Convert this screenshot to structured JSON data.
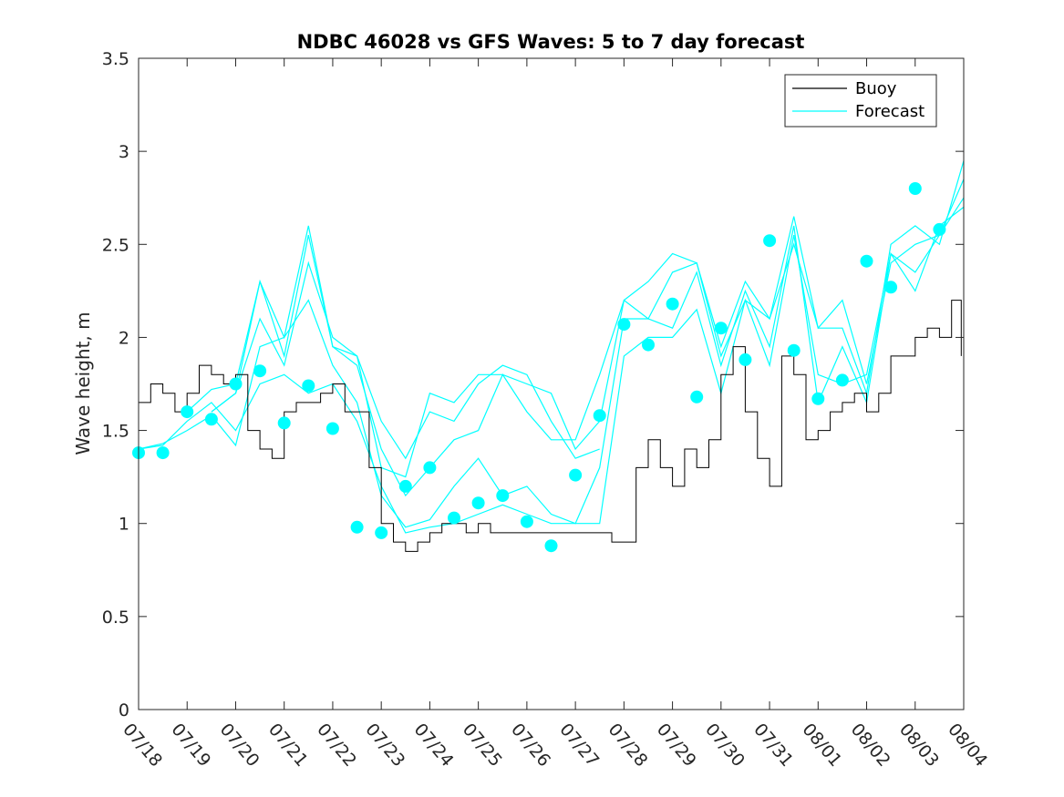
{
  "chart_data": {
    "type": "line",
    "title": "NDBC 46028 vs GFS Waves: 5 to 7 day forecast",
    "xlabel": "",
    "ylabel": "Wave height, m",
    "xlim": [
      "07/18",
      "08/04"
    ],
    "ylim": [
      0,
      3.5
    ],
    "x_tick_labels": [
      "07/18",
      "07/19",
      "07/20",
      "07/21",
      "07/22",
      "07/23",
      "07/24",
      "07/25",
      "07/26",
      "07/27",
      "07/28",
      "07/29",
      "07/30",
      "07/31",
      "08/01",
      "08/02",
      "08/03",
      "08/04"
    ],
    "y_ticks": [
      0,
      0.5,
      1,
      1.5,
      2,
      2.5,
      3,
      3.5
    ],
    "y_tick_labels": [
      "0",
      "0.5",
      "1",
      "1.5",
      "2",
      "2.5",
      "3",
      "3.5"
    ],
    "legend": {
      "position": "top-right",
      "entries": [
        "Buoy",
        "Forecast"
      ]
    },
    "colors": {
      "buoy": "#000000",
      "forecast": "#00ffff",
      "axis": "#262626"
    },
    "series": [
      {
        "name": "Buoy",
        "days": [
          0.0,
          0.25,
          0.5,
          0.75,
          1.0,
          1.25,
          1.5,
          1.75,
          2.0,
          2.25,
          2.5,
          2.75,
          3.0,
          3.25,
          3.5,
          3.75,
          4.0,
          4.25,
          4.5,
          4.75,
          5.0,
          5.25,
          5.5,
          5.75,
          6.0,
          6.25,
          6.5,
          6.75,
          7.0,
          7.25,
          7.5,
          7.75,
          8.0,
          8.25,
          8.5,
          8.75,
          9.0,
          9.25,
          9.5,
          9.75,
          10.0,
          10.25,
          10.5,
          10.75,
          11.0,
          11.25,
          11.5,
          11.75,
          12.0,
          12.25,
          12.5,
          12.75,
          13.0,
          13.25,
          13.5,
          13.75,
          14.0,
          14.25,
          14.5,
          14.75,
          15.0,
          15.25,
          15.5,
          15.75,
          16.0,
          16.25,
          16.5,
          16.75,
          16.95
        ],
        "values": [
          1.65,
          1.75,
          1.7,
          1.6,
          1.7,
          1.85,
          1.8,
          1.75,
          1.8,
          1.5,
          1.4,
          1.35,
          1.6,
          1.65,
          1.65,
          1.7,
          1.75,
          1.6,
          1.6,
          1.3,
          1.0,
          0.9,
          0.85,
          0.9,
          0.95,
          1.0,
          1.0,
          0.95,
          1.0,
          0.95,
          0.95,
          0.95,
          0.95,
          0.95,
          0.95,
          0.95,
          0.95,
          0.95,
          0.95,
          0.9,
          0.9,
          1.3,
          1.45,
          1.3,
          1.2,
          1.4,
          1.3,
          1.45,
          1.8,
          1.95,
          1.6,
          1.35,
          1.2,
          1.9,
          1.8,
          1.45,
          1.5,
          1.6,
          1.65,
          1.7,
          1.6,
          1.7,
          1.9,
          1.9,
          2.0,
          2.05,
          2.0,
          2.2,
          1.9
        ]
      },
      {
        "name": "Forecast",
        "segments": [
          {
            "days": [
              0.0,
              0.5,
              1.0,
              1.5,
              2.0,
              2.5,
              3.0,
              3.5,
              4.0,
              4.5,
              5.0,
              5.5,
              6.0,
              6.5,
              7.0,
              7.5,
              8.0,
              8.5,
              9.0,
              9.5,
              10.0,
              10.5,
              11.0,
              11.5,
              12.0,
              12.5,
              13.0,
              13.5,
              14.0,
              14.5,
              15.0,
              15.5,
              16.0,
              16.5,
              17.0
            ],
            "values": [
              1.4,
              1.42,
              1.55,
              1.65,
              1.5,
              1.75,
              1.8,
              1.7,
              1.75,
              1.55,
              1.2,
              0.95,
              0.98,
              1.0,
              1.05,
              1.1,
              1.05,
              1.0,
              1.0,
              1.0,
              1.9,
              2.0,
              2.0,
              2.15,
              1.7,
              2.2,
              1.85,
              2.55,
              1.8,
              1.75,
              1.8,
              2.45,
              2.35,
              2.55,
              2.85
            ]
          },
          {
            "days": [
              0.0,
              0.5,
              1.0,
              1.5,
              2.0,
              2.5,
              3.0,
              3.5,
              4.0,
              4.5,
              5.0,
              5.5,
              6.0,
              6.5,
              7.0,
              7.5,
              8.0,
              8.5,
              9.0,
              9.5,
              10.0,
              10.5,
              11.0,
              11.5,
              12.0,
              12.5,
              13.0,
              13.5,
              14.0,
              14.5,
              15.0,
              15.5,
              16.0,
              16.5,
              17.0
            ],
            "values": [
              1.4,
              1.43,
              1.5,
              1.58,
              1.42,
              1.95,
              2.0,
              2.2,
              1.85,
              1.65,
              1.15,
              0.98,
              1.02,
              1.2,
              1.35,
              1.15,
              1.2,
              1.05,
              1.0,
              1.3,
              2.1,
              2.1,
              2.05,
              2.35,
              1.85,
              2.25,
              1.95,
              2.6,
              1.65,
              1.95,
              1.65,
              2.45,
              2.25,
              2.6,
              2.7
            ]
          },
          {
            "days": [
              1.0,
              1.5,
              2.0,
              2.5,
              3.0,
              3.5,
              4.0,
              4.5,
              5.0,
              5.5,
              6.0,
              6.5,
              7.0,
              7.5,
              8.0,
              8.5,
              9.0,
              9.5,
              10.0,
              10.5,
              11.0,
              11.5,
              12.0,
              12.5,
              13.0,
              13.5,
              14.0,
              14.5,
              15.0,
              15.5,
              16.0,
              16.5,
              17.0
            ],
            "values": [
              1.6,
              1.72,
              1.75,
              2.3,
              1.9,
              2.55,
              1.95,
              1.85,
              1.4,
              1.15,
              1.3,
              1.45,
              1.5,
              1.8,
              1.6,
              1.45,
              1.45,
              1.8,
              2.2,
              2.1,
              2.35,
              2.4,
              1.9,
              2.2,
              2.1,
              2.65,
              2.05,
              2.05,
              1.7,
              2.5,
              2.6,
              2.5,
              2.95
            ]
          },
          {
            "days": [
              1.5,
              2.0,
              2.5,
              3.0,
              3.5,
              4.0,
              4.5,
              5.0,
              5.5,
              6.0,
              6.5,
              7.0,
              7.5,
              8.0,
              8.5,
              9.0,
              9.5
            ],
            "values": [
              1.6,
              1.7,
              2.1,
              1.85,
              2.4,
              2.0,
              1.9,
              1.55,
              1.35,
              1.6,
              1.55,
              1.75,
              1.85,
              1.8,
              1.55,
              1.35,
              1.4
            ]
          },
          {
            "days": [
              1.5,
              2.0,
              2.5,
              3.0,
              3.5,
              4.0,
              4.5,
              5.0,
              5.5,
              6.0,
              6.5,
              7.0,
              7.5,
              8.0,
              8.5,
              9.0,
              9.5,
              10.0,
              10.5,
              11.0,
              11.5,
              12.0,
              12.5,
              13.0,
              13.5,
              14.0,
              14.5,
              15.0,
              15.5,
              16.0,
              16.5,
              17.0
            ],
            "values": [
              1.6,
              1.7,
              2.3,
              2.0,
              2.6,
              1.95,
              1.9,
              1.3,
              1.25,
              1.7,
              1.65,
              1.8,
              1.8,
              1.75,
              1.7,
              1.4,
              1.55,
              2.2,
              2.3,
              2.45,
              2.4,
              1.95,
              2.3,
              2.1,
              2.5,
              2.05,
              2.2,
              1.75,
              2.4,
              2.5,
              2.55,
              2.75
            ]
          }
        ]
      },
      {
        "name": "Forecast markers",
        "days": [
          0.0,
          0.5,
          1.0,
          1.5,
          2.0,
          2.5,
          3.0,
          3.5,
          4.0,
          4.5,
          5.0,
          5.5,
          6.0,
          6.5,
          7.0,
          7.5,
          8.0,
          8.5,
          9.0,
          9.5,
          10.0,
          10.5,
          11.0,
          11.5,
          12.0,
          12.5,
          13.0,
          13.5,
          14.0,
          14.5,
          15.0,
          15.5,
          16.0,
          16.5
        ],
        "values": [
          1.38,
          1.38,
          1.6,
          1.56,
          1.75,
          1.82,
          1.54,
          1.74,
          1.51,
          0.98,
          0.95,
          1.2,
          1.3,
          1.03,
          1.11,
          1.15,
          1.01,
          0.88,
          1.26,
          1.58,
          2.07,
          1.96,
          2.18,
          1.68,
          2.05,
          1.88,
          2.52,
          1.93,
          1.67,
          1.77,
          2.41,
          2.27,
          2.8,
          2.58
        ]
      }
    ]
  }
}
